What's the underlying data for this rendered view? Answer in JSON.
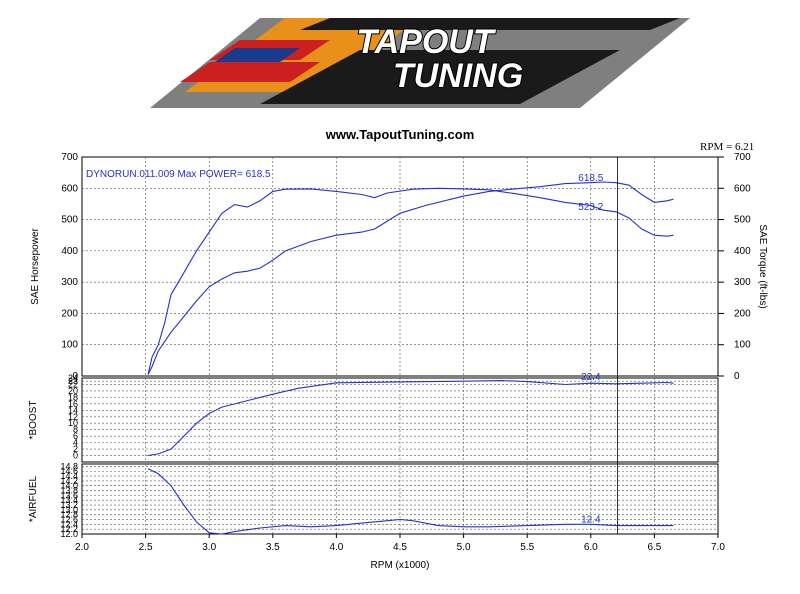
{
  "banner": {
    "line1": "TAPOUT",
    "line2": "TUNING"
  },
  "website": "www.TapoutTuning.com",
  "rpm_readout": "RPM = 6.21",
  "colors": {
    "trace": "#2233cc",
    "banner_orange": "#e8901a",
    "banner_red": "#cc1f1f",
    "banner_blue": "#1a3a8c"
  },
  "chart_data": [
    {
      "type": "line",
      "panel": "power",
      "title": "DYNORUN.011.009  Max POWER= 618.5",
      "ylabel": "SAE Horsepower",
      "ylabel_right": "SAE Torque (ft-lbs)",
      "ylim": [
        0,
        700
      ],
      "yticks": [
        0,
        100,
        200,
        300,
        400,
        500,
        600,
        700
      ],
      "grid": true,
      "series": [
        {
          "role": "horsepower",
          "end_label": "618.5",
          "x": [
            2.52,
            2.55,
            2.6,
            2.65,
            2.7,
            2.8,
            2.9,
            3.0,
            3.1,
            3.2,
            3.3,
            3.4,
            3.5,
            3.6,
            3.8,
            4.0,
            4.2,
            4.3,
            4.5,
            4.7,
            5.0,
            5.2,
            5.4,
            5.6,
            5.8,
            6.0,
            6.1,
            6.2,
            6.3,
            6.4,
            6.5,
            6.6,
            6.65
          ],
          "values": [
            5,
            30,
            80,
            110,
            140,
            190,
            240,
            285,
            310,
            330,
            335,
            345,
            370,
            400,
            430,
            450,
            460,
            470,
            520,
            545,
            575,
            590,
            598,
            605,
            615,
            618,
            620,
            618,
            610,
            580,
            555,
            560,
            565
          ]
        },
        {
          "role": "torque",
          "end_label": "523.2",
          "x": [
            2.52,
            2.55,
            2.6,
            2.65,
            2.7,
            2.8,
            2.9,
            3.0,
            3.1,
            3.2,
            3.3,
            3.4,
            3.5,
            3.6,
            3.8,
            4.0,
            4.2,
            4.3,
            4.4,
            4.6,
            4.8,
            5.0,
            5.2,
            5.4,
            5.6,
            5.8,
            6.0,
            6.1,
            6.2,
            6.3,
            6.4,
            6.5,
            6.6,
            6.65
          ],
          "values": [
            5,
            60,
            100,
            170,
            260,
            330,
            400,
            460,
            520,
            548,
            540,
            560,
            590,
            597,
            598,
            590,
            580,
            570,
            585,
            597,
            600,
            598,
            595,
            583,
            570,
            555,
            545,
            530,
            525,
            505,
            470,
            450,
            447,
            450
          ]
        }
      ]
    },
    {
      "type": "line",
      "panel": "boost",
      "ylabel": "*BOOST",
      "ylim": [
        -2,
        24
      ],
      "yticks": [
        0,
        2,
        4,
        6,
        8,
        10,
        12,
        14,
        16,
        18,
        20,
        22,
        23,
        24
      ],
      "grid": true,
      "series": [
        {
          "role": "boost",
          "end_label": "22.4",
          "x": [
            2.52,
            2.6,
            2.7,
            2.8,
            2.9,
            3.0,
            3.1,
            3.3,
            3.5,
            3.7,
            4.0,
            4.5,
            5.0,
            5.3,
            5.5,
            5.8,
            6.0,
            6.2,
            6.4,
            6.6,
            6.65
          ],
          "values": [
            0,
            0.5,
            2,
            6,
            10,
            13,
            15,
            17,
            19,
            20.8,
            22.5,
            22.8,
            23.0,
            23.2,
            22.9,
            22.0,
            22.4,
            22.2,
            22.4,
            22.6,
            22.4
          ]
        }
      ]
    },
    {
      "type": "line",
      "panel": "airfuel",
      "ylabel": "*AIRFUEL",
      "ylim": [
        12.0,
        14.9
      ],
      "yticks": [
        12.0,
        12.2,
        12.4,
        12.6,
        12.8,
        13.0,
        13.2,
        13.4,
        13.6,
        13.8,
        14.0,
        14.2,
        14.4,
        14.6,
        14.8
      ],
      "xlabel": "RPM (x1000)",
      "xlim": [
        2.0,
        7.0
      ],
      "xticks": [
        2.0,
        2.5,
        3.0,
        3.5,
        4.0,
        4.5,
        5.0,
        5.5,
        6.0,
        6.5,
        7.0
      ],
      "grid": true,
      "series": [
        {
          "role": "airfuel",
          "end_label": "12.4",
          "x": [
            2.52,
            2.6,
            2.7,
            2.8,
            2.9,
            3.0,
            3.1,
            3.2,
            3.4,
            3.6,
            3.8,
            4.0,
            4.2,
            4.4,
            4.5,
            4.6,
            4.8,
            5.0,
            5.2,
            5.5,
            5.8,
            6.0,
            6.2,
            6.4,
            6.6,
            6.65
          ],
          "values": [
            14.7,
            14.5,
            14.0,
            13.2,
            12.5,
            12.05,
            12.0,
            12.1,
            12.25,
            12.35,
            12.3,
            12.35,
            12.45,
            12.55,
            12.6,
            12.55,
            12.35,
            12.3,
            12.3,
            12.35,
            12.4,
            12.4,
            12.35,
            12.35,
            12.35,
            12.35
          ]
        }
      ]
    }
  ]
}
